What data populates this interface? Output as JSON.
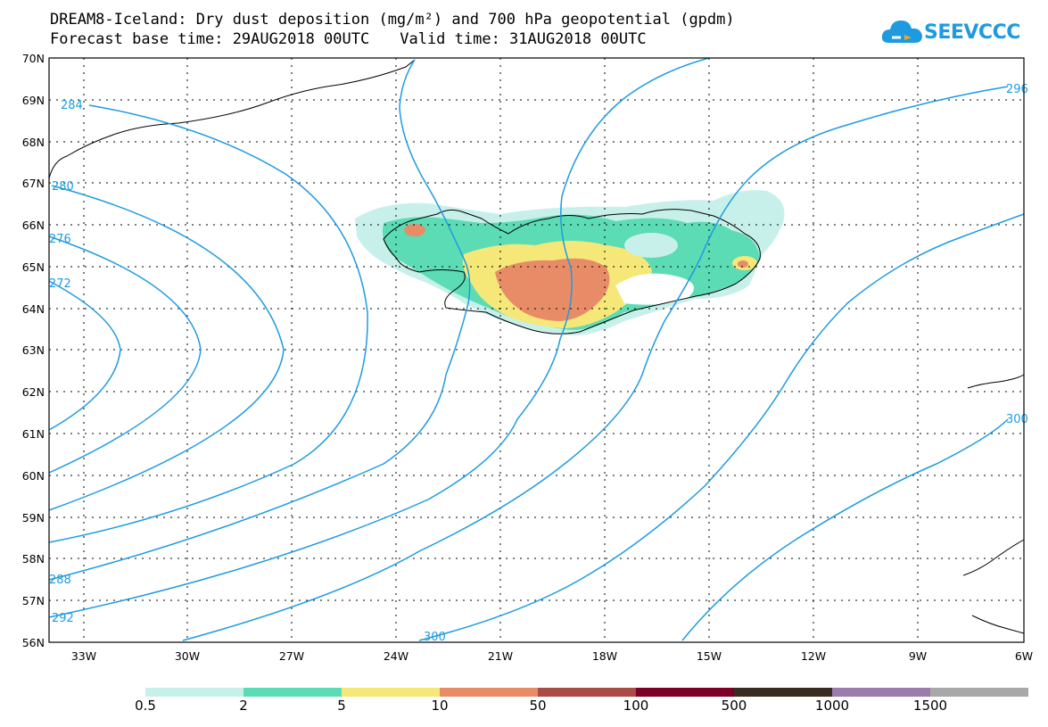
{
  "title": {
    "line1": "DREAM8-Iceland: Dry dust deposition (mg/m²) and 700 hPa geopotential (gpdm)",
    "base_time": "Forecast base time: 29AUG2018 00UTC",
    "valid_time": "Valid time: 31AUG2018 00UTC"
  },
  "logo": {
    "text": "SEEVCCC",
    "color": "#1e9be0"
  },
  "map": {
    "region": "Iceland",
    "lat_labels": [
      "70N",
      "69N",
      "68N",
      "67N",
      "66N",
      "65N",
      "64N",
      "63N",
      "62N",
      "61N",
      "60N",
      "59N",
      "58N",
      "57N",
      "56N"
    ],
    "lon_labels": [
      "33W",
      "30W",
      "27W",
      "24W",
      "21W",
      "18W",
      "15W",
      "12W",
      "9W",
      "6W"
    ],
    "contour_color": "#1e9be0",
    "contour_labels": [
      "284",
      "280",
      "276",
      "272",
      "288",
      "292",
      "300",
      "296",
      "300"
    ]
  },
  "colorbar": {
    "colors": [
      "#c8f0ea",
      "#5cdcb4",
      "#f5e878",
      "#e88c68",
      "#a84c48",
      "#7c0028",
      "#382c20",
      "#9c7cac",
      "#a8a8a8"
    ],
    "labels": [
      "0.5",
      "2",
      "5",
      "10",
      "50",
      "100",
      "500",
      "1000",
      "1500"
    ]
  }
}
